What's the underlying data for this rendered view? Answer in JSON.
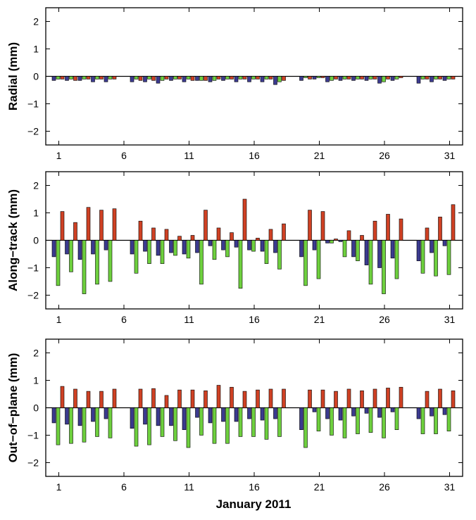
{
  "figure": {
    "xlabel": "January 2011"
  },
  "colors": {
    "series1": "#3b3a8f",
    "series2": "#6ed03e",
    "series3": "#cf4124",
    "frame": "#000000"
  },
  "chart_data": [
    {
      "type": "bar",
      "ylabel": "Radial (mm)",
      "ylim": [
        -2.5,
        2.5
      ],
      "yticks": [
        -2,
        -1,
        0,
        1,
        2
      ],
      "xlim": [
        0,
        32
      ],
      "xticks": [
        1,
        6,
        11,
        16,
        21,
        26,
        31
      ],
      "x": [
        1,
        2,
        3,
        4,
        5,
        7,
        8,
        9,
        10,
        11,
        12,
        13,
        14,
        15,
        16,
        17,
        18,
        20,
        21,
        22,
        23,
        24,
        25,
        26,
        27,
        29,
        30,
        31
      ],
      "series": [
        {
          "values": [
            -0.15,
            -0.15,
            -0.15,
            -0.2,
            -0.2,
            -0.2,
            -0.2,
            -0.25,
            -0.15,
            -0.2,
            -0.15,
            -0.2,
            -0.15,
            -0.2,
            -0.2,
            -0.2,
            -0.3,
            -0.15,
            -0.1,
            -0.2,
            -0.15,
            -0.15,
            -0.15,
            -0.25,
            -0.15,
            -0.25,
            -0.2,
            -0.15
          ]
        },
        {
          "values": [
            -0.1,
            -0.1,
            -0.1,
            -0.1,
            -0.1,
            -0.1,
            -0.1,
            -0.15,
            -0.1,
            -0.1,
            -0.15,
            -0.15,
            -0.1,
            -0.1,
            -0.1,
            -0.1,
            -0.2,
            -0.05,
            -0.05,
            -0.15,
            -0.1,
            -0.1,
            -0.1,
            -0.2,
            -0.1,
            -0.1,
            -0.1,
            -0.1
          ]
        },
        {
          "values": [
            -0.1,
            -0.15,
            -0.1,
            -0.1,
            -0.1,
            -0.15,
            -0.15,
            -0.1,
            -0.1,
            -0.15,
            -0.15,
            -0.1,
            -0.1,
            -0.1,
            -0.1,
            -0.1,
            -0.15,
            -0.1,
            -0.05,
            -0.1,
            -0.1,
            -0.1,
            -0.1,
            -0.1,
            -0.05,
            -0.1,
            -0.1,
            -0.1
          ]
        }
      ]
    },
    {
      "type": "bar",
      "ylabel": "Along−track (mm)",
      "ylim": [
        -2.5,
        2.5
      ],
      "yticks": [
        -2,
        -1,
        0,
        1,
        2
      ],
      "xlim": [
        0,
        32
      ],
      "xticks": [
        1,
        6,
        11,
        16,
        21,
        26,
        31
      ],
      "x": [
        1,
        2,
        3,
        4,
        5,
        7,
        8,
        9,
        10,
        11,
        12,
        13,
        14,
        15,
        16,
        17,
        18,
        20,
        21,
        22,
        23,
        24,
        25,
        26,
        27,
        29,
        30,
        31
      ],
      "series": [
        {
          "values": [
            -0.6,
            -0.5,
            -0.7,
            -0.5,
            -0.35,
            -0.5,
            -0.4,
            -0.55,
            -0.45,
            -0.5,
            -0.45,
            -0.2,
            -0.35,
            -0.25,
            -0.35,
            -0.4,
            -0.45,
            -0.6,
            -0.35,
            -0.1,
            -0.05,
            -0.6,
            -0.9,
            -1.0,
            -0.65,
            -0.75,
            -0.45,
            -0.2
          ]
        },
        {
          "values": [
            -1.65,
            -1.15,
            -1.95,
            -1.6,
            -1.5,
            -1.2,
            -0.85,
            -0.85,
            -0.55,
            -0.65,
            -1.6,
            -0.7,
            -0.6,
            -1.75,
            -0.4,
            -0.85,
            -1.05,
            -1.65,
            -1.4,
            -0.1,
            -0.6,
            -0.75,
            -1.6,
            -1.95,
            -1.4,
            -1.2,
            -1.3,
            -1.25
          ]
        },
        {
          "values": [
            1.05,
            0.65,
            1.2,
            1.1,
            1.15,
            0.7,
            0.45,
            0.4,
            0.15,
            0.18,
            1.1,
            0.45,
            0.28,
            1.5,
            0.08,
            0.4,
            0.6,
            1.1,
            1.05,
            0.05,
            0.35,
            0.18,
            0.7,
            0.95,
            0.78,
            0.45,
            0.85,
            1.3
          ]
        }
      ]
    },
    {
      "type": "bar",
      "ylabel": "Out−of−plane (mm)",
      "ylim": [
        -2.5,
        2.5
      ],
      "yticks": [
        -2,
        -1,
        0,
        1,
        2
      ],
      "xlim": [
        0,
        32
      ],
      "xticks": [
        1,
        6,
        11,
        16,
        21,
        26,
        31
      ],
      "x": [
        1,
        2,
        3,
        4,
        5,
        7,
        8,
        9,
        10,
        11,
        12,
        13,
        14,
        15,
        16,
        17,
        18,
        20,
        21,
        22,
        23,
        24,
        25,
        26,
        27,
        29,
        30,
        31
      ],
      "series": [
        {
          "values": [
            -0.55,
            -0.6,
            -0.65,
            -0.5,
            -0.4,
            -0.75,
            -0.6,
            -0.65,
            -0.65,
            -0.8,
            -0.35,
            -0.55,
            -0.5,
            -0.5,
            -0.4,
            -0.45,
            -0.4,
            -0.8,
            -0.15,
            -0.4,
            -0.45,
            -0.3,
            -0.2,
            -0.35,
            -0.15,
            -0.4,
            -0.3,
            -0.25
          ]
        },
        {
          "values": [
            -1.35,
            -1.3,
            -1.25,
            -1.05,
            -1.1,
            -1.4,
            -1.35,
            -1.05,
            -1.2,
            -1.45,
            -1.0,
            -1.3,
            -1.3,
            -1.05,
            -1.05,
            -1.15,
            -1.05,
            -1.45,
            -0.85,
            -1.0,
            -1.1,
            -0.95,
            -0.9,
            -1.1,
            -0.8,
            -0.95,
            -0.95,
            -0.85
          ]
        },
        {
          "values": [
            0.78,
            0.68,
            0.6,
            0.6,
            0.68,
            0.68,
            0.7,
            0.45,
            0.65,
            0.65,
            0.62,
            0.82,
            0.75,
            0.6,
            0.65,
            0.68,
            0.68,
            0.65,
            0.65,
            0.6,
            0.68,
            0.62,
            0.68,
            0.72,
            0.75,
            0.6,
            0.68,
            0.62
          ]
        }
      ]
    }
  ]
}
